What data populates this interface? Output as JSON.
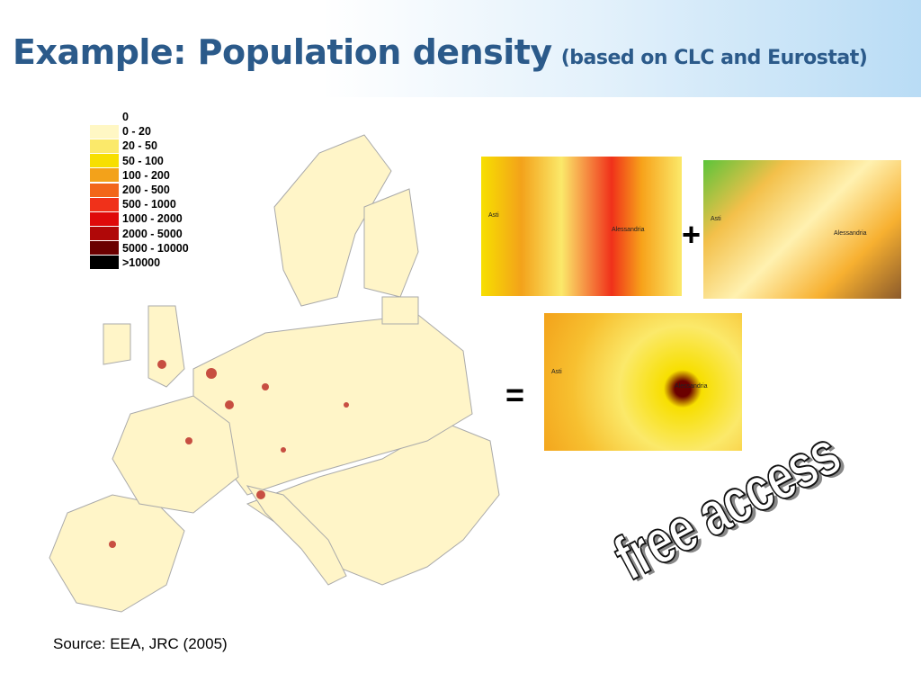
{
  "title": {
    "main": "Example: Population density",
    "sub": "(based on CLC and Eurostat)"
  },
  "legend": [
    {
      "label": "0",
      "color": "#ffffff"
    },
    {
      "label": "0 - 20",
      "color": "#fff7c4"
    },
    {
      "label": "20 - 50",
      "color": "#fbe96a"
    },
    {
      "label": "50 - 100",
      "color": "#f7df00"
    },
    {
      "label": "100 - 200",
      "color": "#f3a21a"
    },
    {
      "label": "200 - 500",
      "color": "#f2661a"
    },
    {
      "label": "500 - 1000",
      "color": "#f0311a"
    },
    {
      "label": "1000 - 2000",
      "color": "#df0a0a"
    },
    {
      "label": "2000 - 5000",
      "color": "#b00808"
    },
    {
      "label": "5000 - 10000",
      "color": "#6b0000"
    },
    {
      "label": ">10000",
      "color": "#000000"
    }
  ],
  "maps": {
    "city1": "Asti",
    "city2": "Alessandria"
  },
  "operators": {
    "plus": "+",
    "equals": "="
  },
  "source": "Source: EEA, JRC (2005)",
  "stamp": "free access"
}
